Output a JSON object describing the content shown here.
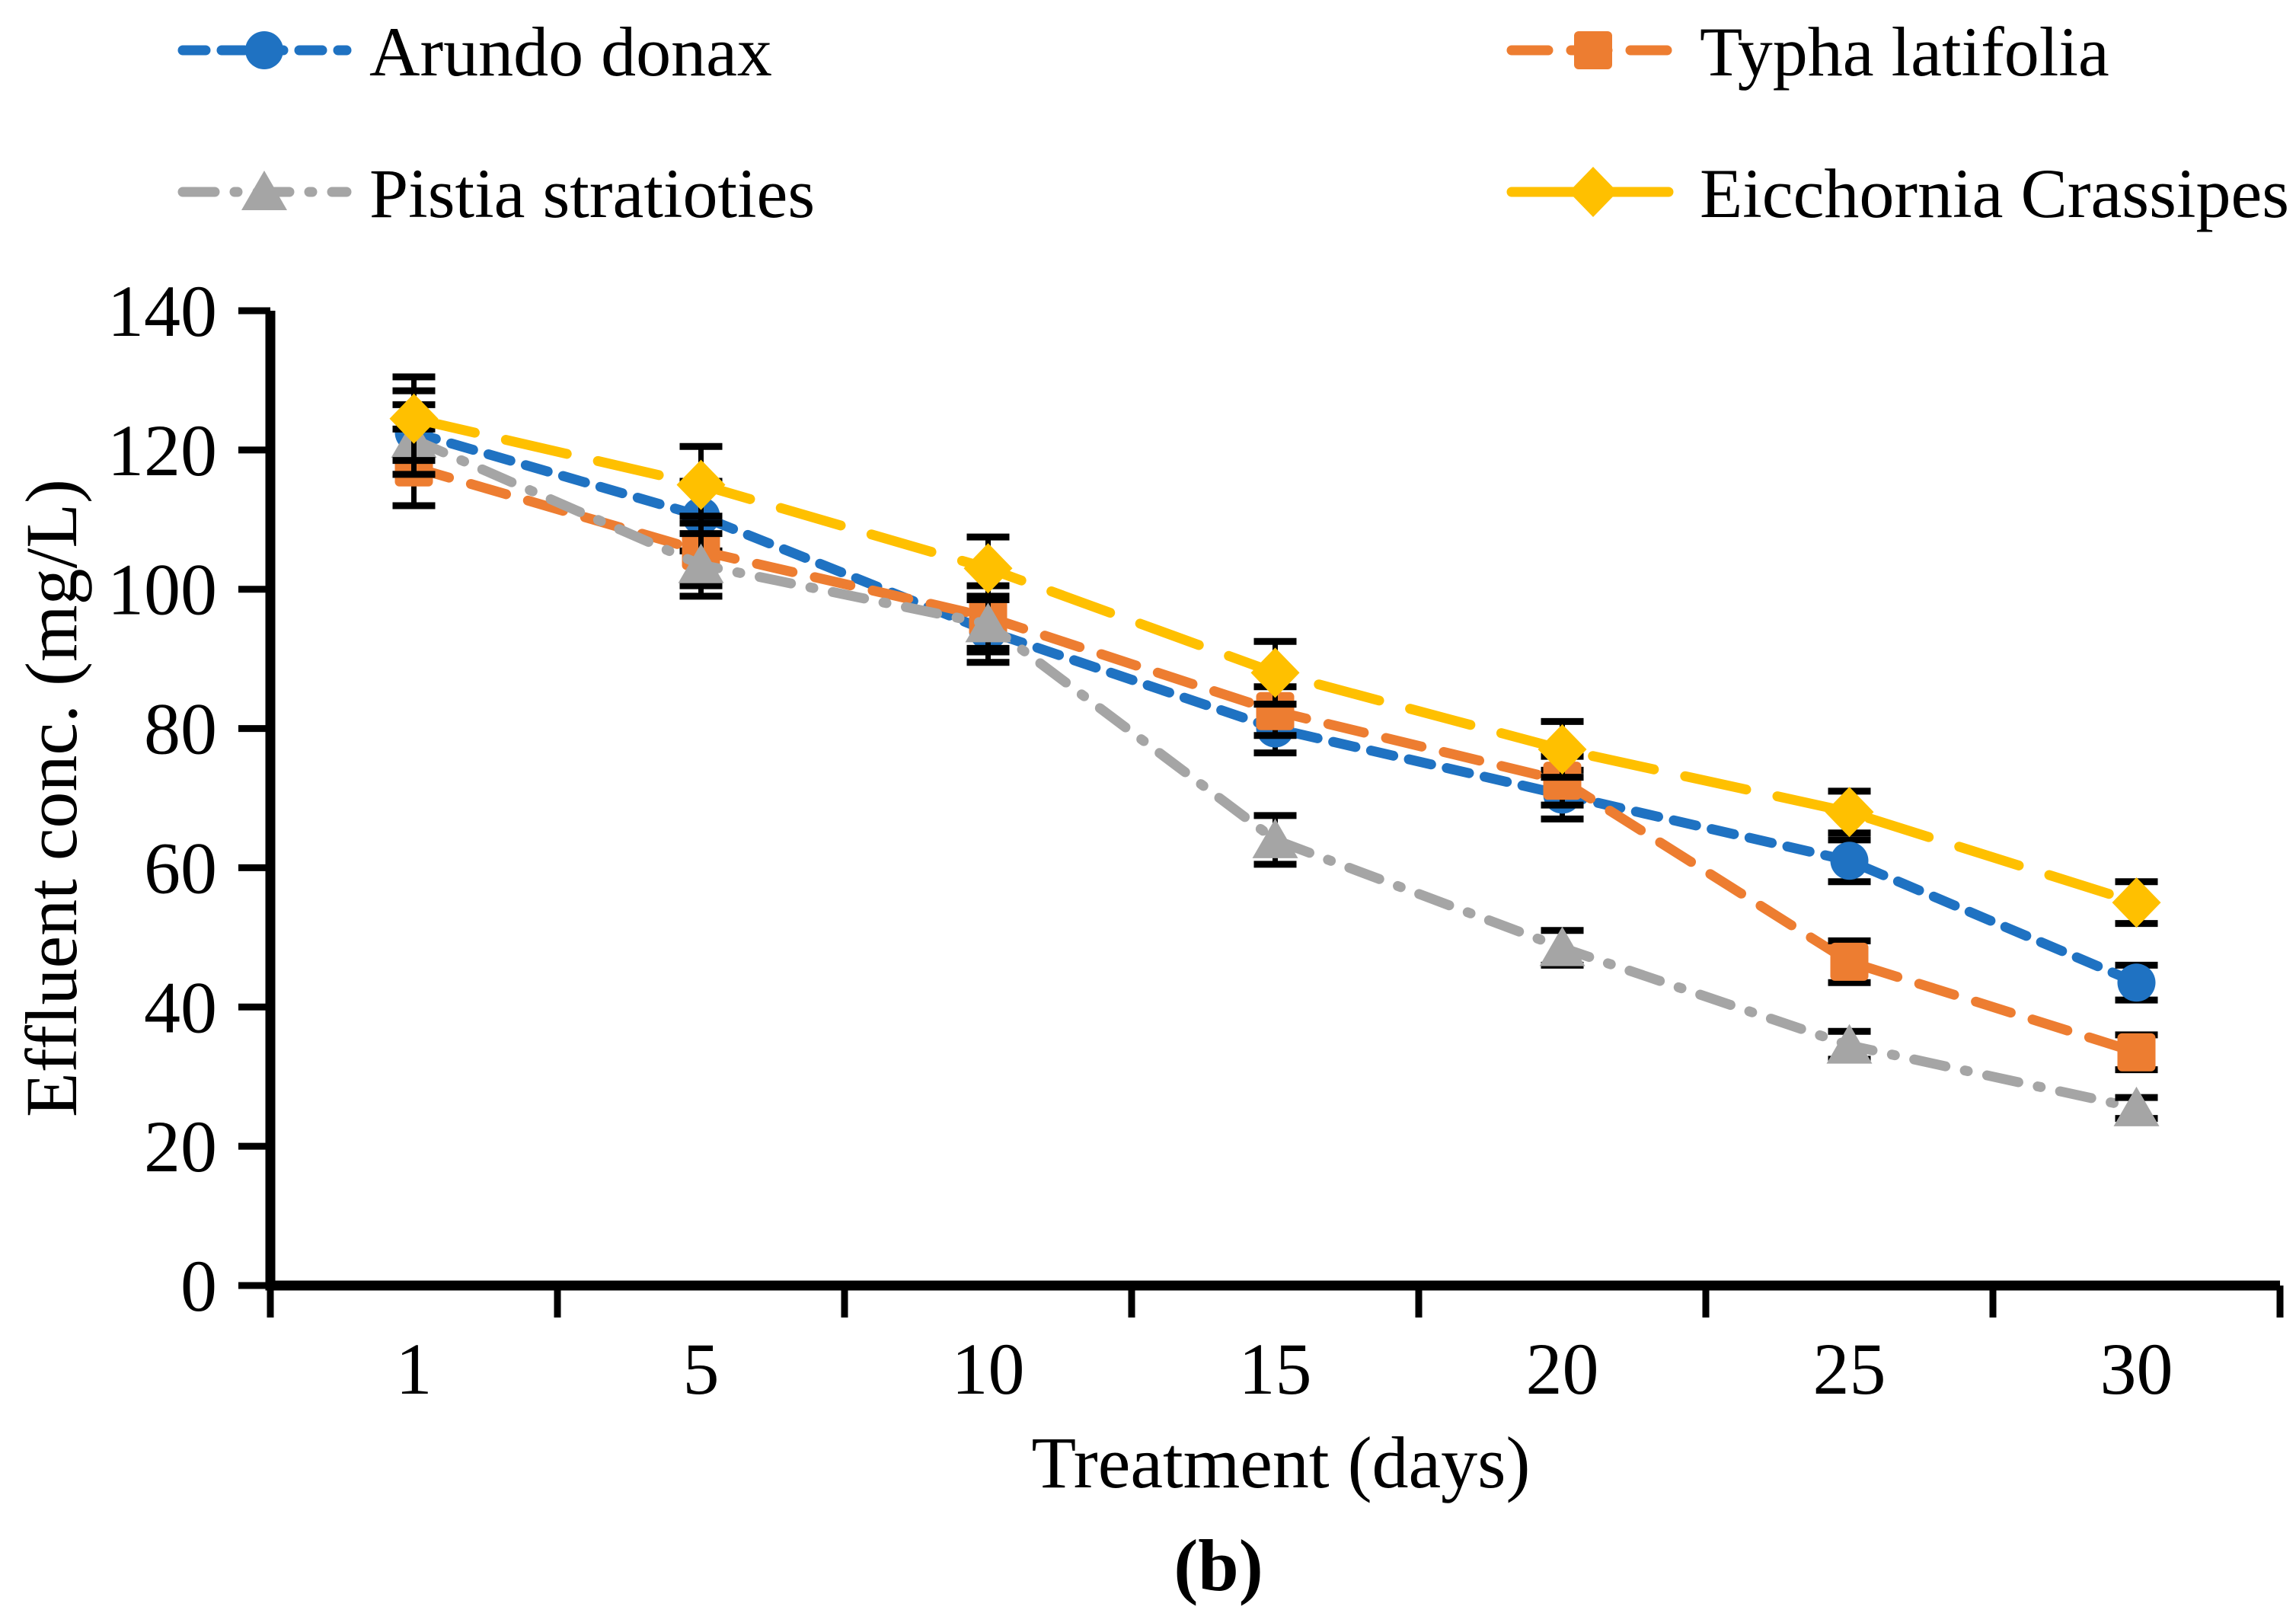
{
  "caption": {
    "text": "(b)"
  },
  "chart_data": {
    "type": "line",
    "title": "",
    "xlabel": "Treatment (days)",
    "ylabel": "Effluent conc. (mg/L)",
    "categories": [
      1,
      5,
      10,
      15,
      20,
      25,
      30
    ],
    "ylim": [
      0,
      140
    ],
    "ytick_step": 20,
    "grid": false,
    "legend_position": "top-two-columns",
    "error_bars": true,
    "axis_color": "#000000",
    "series": [
      {
        "name": "Arundo donax",
        "color": "#1F72C2",
        "marker": "circle",
        "dash": "dot",
        "values": [
          122.5,
          110.5,
          94,
          80,
          70.5,
          61,
          43.5
        ],
        "err": [
          6,
          5,
          4.5,
          3.5,
          3.5,
          3,
          2.5
        ]
      },
      {
        "name": "Typha latifolia",
        "color": "#ED7D31",
        "marker": "square",
        "dash": "dash",
        "values": [
          117.5,
          105.5,
          96,
          82.5,
          72.5,
          46.5,
          33.5
        ],
        "err": [
          5.5,
          5,
          4.5,
          3.5,
          3.5,
          3,
          2.5
        ]
      },
      {
        "name": "Pistia stratioties",
        "color": "#A5A5A5",
        "marker": "triangle",
        "dash": "dashdot",
        "values": [
          121.5,
          103.5,
          95,
          64,
          48.5,
          34.5,
          25.5
        ],
        "err": [
          5,
          4.5,
          4,
          3.5,
          2.5,
          2,
          1.5
        ]
      },
      {
        "name": "Eicchornia Crassipes",
        "color": "#FFC000",
        "marker": "diamond",
        "dash": "longdash",
        "values": [
          124.5,
          115,
          103,
          88,
          77,
          68,
          55
        ],
        "err": [
          6,
          5.5,
          4.5,
          4.5,
          4,
          3,
          3
        ]
      }
    ]
  }
}
